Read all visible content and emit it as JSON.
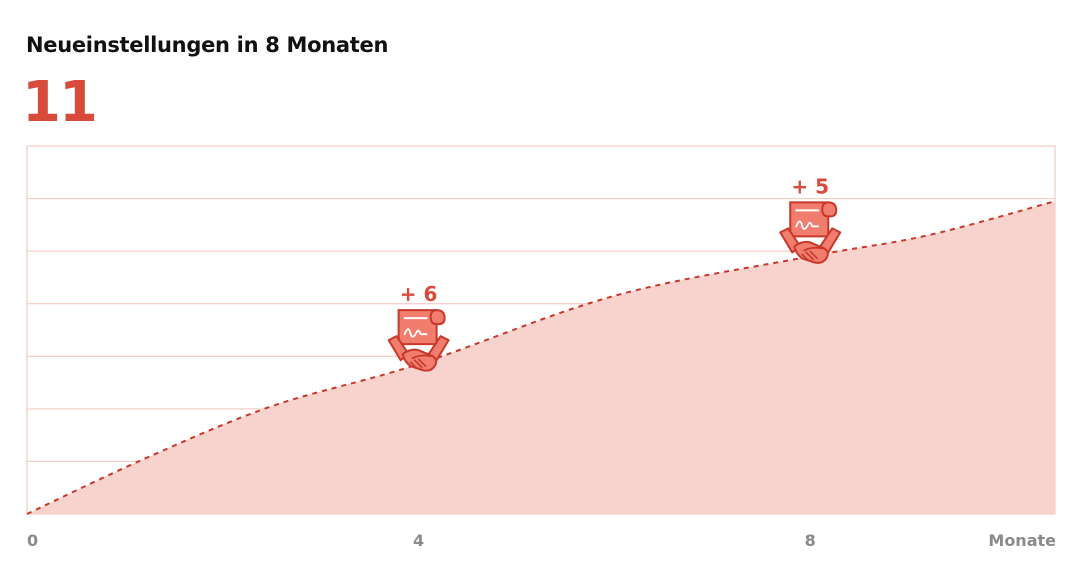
{
  "title": "Neueinstellungen in 8 Monaten",
  "kpi": "11",
  "colors": {
    "accent": "#d84a3a",
    "fill": "#f8d3ce",
    "grid": "#f3c2bc"
  },
  "chart_data": {
    "type": "area",
    "title": "Neueinstellungen in 8 Monaten",
    "xlabel": "Monate",
    "ylabel": "",
    "x_ticks": [
      "0",
      "4",
      "8"
    ],
    "xlim": [
      0,
      10.5
    ],
    "ylim": [
      0,
      7
    ],
    "grid": true,
    "line_style": "dashed",
    "x": [
      0,
      1.2,
      2.5,
      4,
      6,
      8,
      9.2,
      10.5
    ],
    "values": [
      0,
      1.05,
      2.05,
      2.85,
      4.15,
      4.9,
      5.3,
      5.95
    ],
    "annotations": [
      {
        "x": 4,
        "y": 2.85,
        "label": "+ 6",
        "icon": "contract-handshake-icon"
      },
      {
        "x": 8,
        "y": 4.9,
        "label": "+ 5",
        "icon": "contract-handshake-icon"
      }
    ]
  }
}
